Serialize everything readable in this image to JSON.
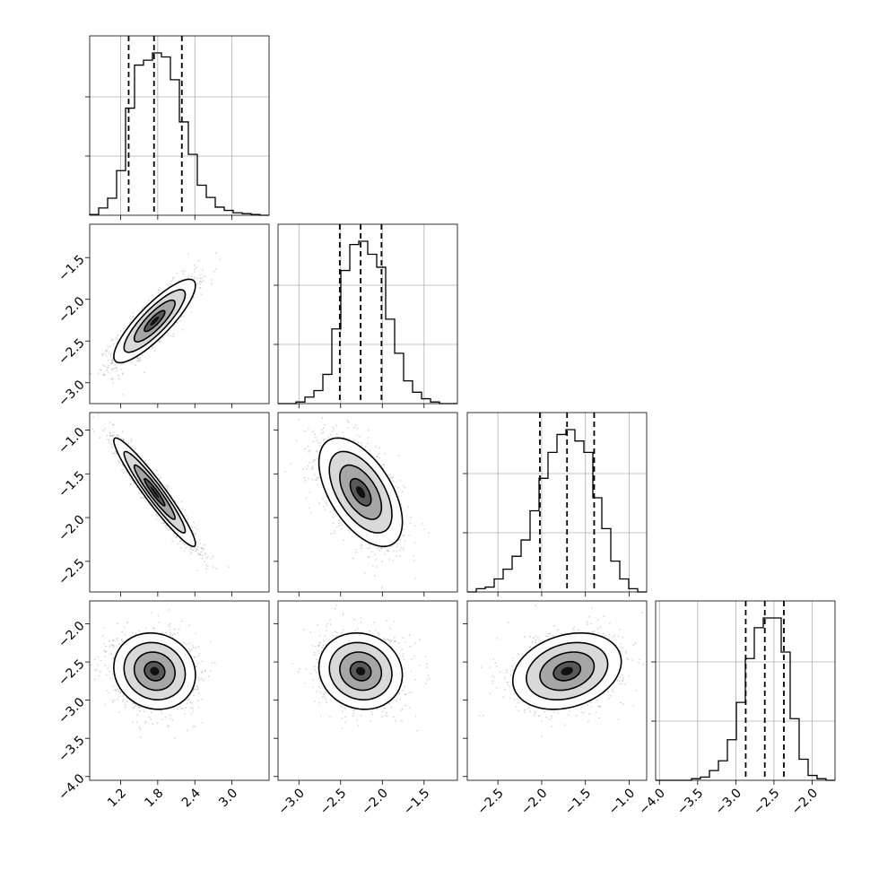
{
  "chart_data": {
    "type": "corner",
    "n_params": 4,
    "grid": true,
    "axes": [
      {
        "lim": [
          0.7,
          3.6
        ],
        "ticks": [
          1.2,
          1.8,
          2.4,
          3.0
        ],
        "tick_labels": [
          "1.2",
          "1.8",
          "2.4",
          "3.0"
        ]
      },
      {
        "lim": [
          -3.25,
          -1.1
        ],
        "ticks": [
          -3.0,
          -2.5,
          -2.0,
          -1.5
        ],
        "tick_labels": [
          "−3.0",
          "−2.5",
          "−2.0",
          "−1.5"
        ]
      },
      {
        "lim": [
          -2.85,
          -0.8
        ],
        "ticks": [
          -2.5,
          -2.0,
          -1.5,
          -1.0
        ],
        "tick_labels": [
          "−2.5",
          "−2.0",
          "−1.5",
          "−1.0"
        ]
      },
      {
        "lim": [
          -4.05,
          -1.7
        ],
        "ticks": [
          -4.0,
          -3.5,
          -3.0,
          -2.5,
          -2.0
        ],
        "tick_labels": [
          "−4.0",
          "−3.5",
          "−3.0",
          "−2.5",
          "−2.0"
        ]
      }
    ],
    "quantiles": [
      [
        1.33,
        1.74,
        2.19
      ],
      [
        -2.51,
        -2.26,
        -2.01
      ],
      [
        -2.02,
        -1.71,
        -1.4
      ],
      [
        -2.87,
        -2.62,
        -2.37
      ]
    ],
    "hist": [
      [
        0.005,
        0.045,
        0.105,
        0.275,
        0.66,
        0.925,
        0.955,
        1.0,
        0.975,
        0.835,
        0.575,
        0.375,
        0.185,
        0.11,
        0.05,
        0.03,
        0.015,
        0.01,
        0.005,
        0.0
      ],
      [
        0.0,
        0.0,
        0.01,
        0.04,
        0.08,
        0.18,
        0.46,
        0.82,
        0.98,
        1.0,
        0.92,
        0.84,
        0.52,
        0.31,
        0.14,
        0.07,
        0.03,
        0.01,
        0.0,
        0.0
      ],
      [
        0.0,
        0.02,
        0.03,
        0.08,
        0.14,
        0.22,
        0.32,
        0.5,
        0.7,
        0.86,
        0.97,
        1.0,
        0.93,
        0.86,
        0.58,
        0.39,
        0.19,
        0.08,
        0.02,
        0.0
      ],
      [
        0.0,
        0.0,
        0.0,
        0.0,
        0.01,
        0.02,
        0.06,
        0.12,
        0.25,
        0.48,
        0.75,
        0.94,
        1.0,
        1.0,
        0.79,
        0.38,
        0.13,
        0.03,
        0.01,
        0.0
      ]
    ],
    "pairs": [
      {
        "x": 0,
        "y": 1,
        "mean": [
          1.75,
          -2.26
        ],
        "sd": [
          0.33,
          0.25
        ],
        "rho": 0.85
      },
      {
        "x": 0,
        "y": 2,
        "mean": [
          1.75,
          -1.71
        ],
        "sd": [
          0.33,
          0.31
        ],
        "rho": -0.95
      },
      {
        "x": 1,
        "y": 2,
        "mean": [
          -2.26,
          -1.71
        ],
        "sd": [
          0.25,
          0.31
        ],
        "rho": -0.55
      },
      {
        "x": 0,
        "y": 3,
        "mean": [
          1.75,
          -2.62
        ],
        "sd": [
          0.33,
          0.25
        ],
        "rho": -0.1
      },
      {
        "x": 1,
        "y": 3,
        "mean": [
          -2.26,
          -2.62
        ],
        "sd": [
          0.25,
          0.25
        ],
        "rho": -0.1
      },
      {
        "x": 2,
        "y": 3,
        "mean": [
          -1.71,
          -2.62
        ],
        "sd": [
          0.31,
          0.25
        ],
        "rho": 0.25
      }
    ]
  }
}
